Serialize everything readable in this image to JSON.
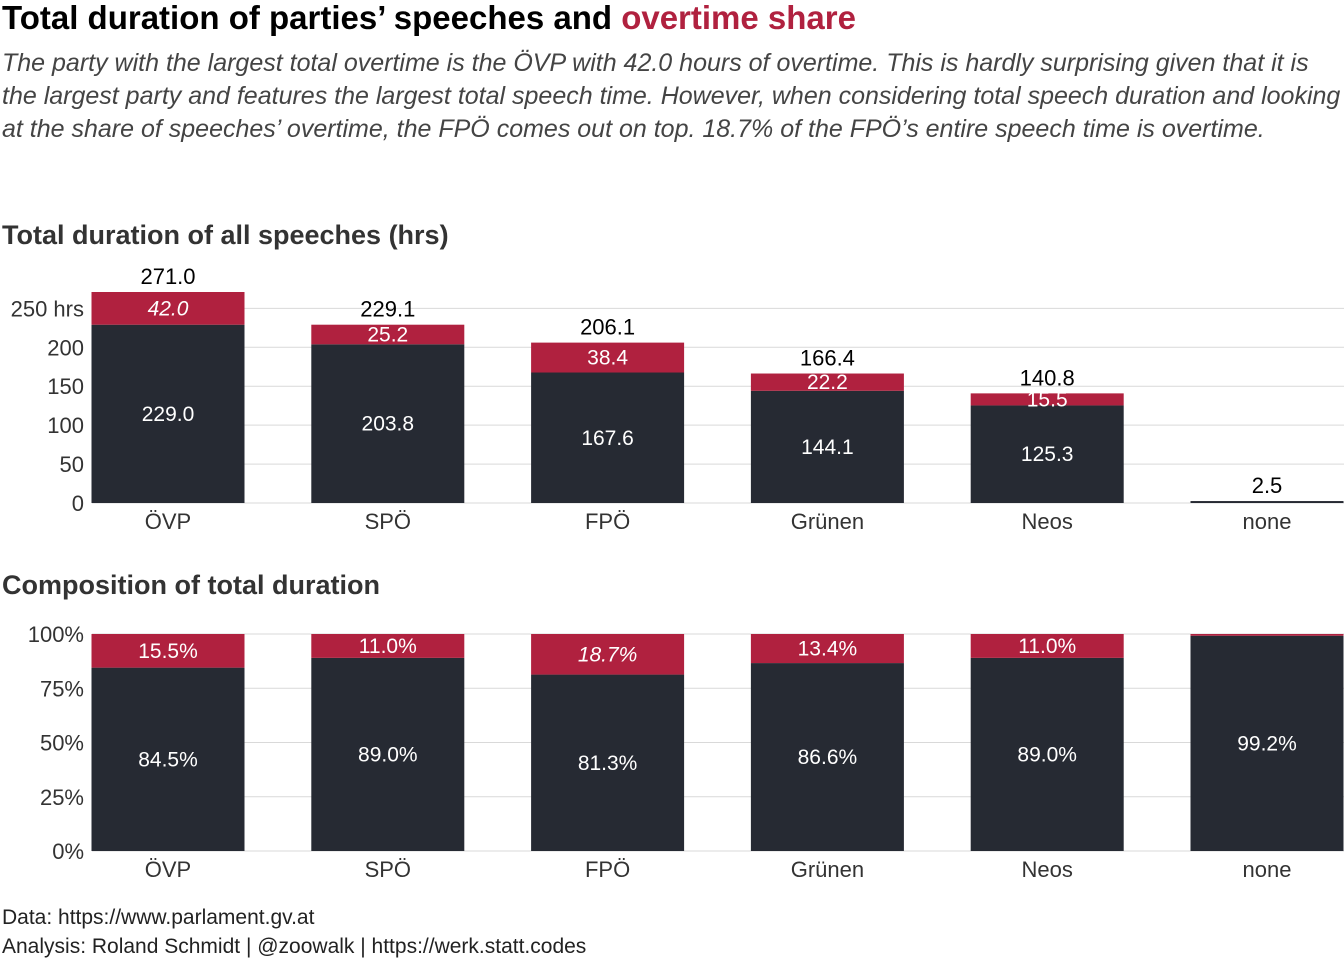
{
  "title": {
    "part1": "Total duration of parties’ speeches and ",
    "part2": "overtime share"
  },
  "subtitle": "The party with the largest total overtime is the ÖVP with 42.0 hours of overtime. This is hardly surprising given that it is the largest party and features the largest total speech time. However, when considering total speech duration and looking at the share of speeches’ overtime, the FPÖ comes out on top. 18.7% of the FPÖ’s entire speech time is overtime.",
  "captions": {
    "data": "Data: https://www.parlament.gv.at",
    "analysis": "Analysis: Roland Schmidt | @zoowalk | https://werk.statt.codes"
  },
  "colors": {
    "regular": "#262a33",
    "overtime": "#b0213f",
    "grid": "#d9d9d9"
  },
  "chart_data": [
    {
      "type": "bar",
      "stacked": true,
      "title": "Total duration of all speeches (hrs)",
      "categories": [
        "ÖVP",
        "SPÖ",
        "FPÖ",
        "Grünen",
        "Neos",
        "none"
      ],
      "series": [
        {
          "name": "regular",
          "values": [
            229.0,
            203.8,
            167.6,
            144.1,
            125.3,
            2.5
          ],
          "labels": [
            "229.0",
            "203.8",
            "167.6",
            "144.1",
            "125.3",
            ""
          ]
        },
        {
          "name": "overtime",
          "values": [
            42.0,
            25.2,
            38.4,
            22.2,
            15.5,
            0.0
          ],
          "labels": [
            "42.0",
            "25.2",
            "38.4",
            "22.2",
            "15.5",
            ""
          ]
        }
      ],
      "totals": [
        271.0,
        229.1,
        206.1,
        166.4,
        140.8,
        2.5
      ],
      "total_labels": [
        "271.0",
        "229.1",
        "206.1",
        "166.4",
        "140.8",
        "2.5"
      ],
      "yticks": [
        0,
        50,
        100,
        150,
        200,
        250
      ],
      "ytick_labels": [
        "0",
        "50",
        "100",
        "150",
        "200",
        "250 hrs"
      ],
      "ylim": [
        0,
        271
      ],
      "grid": true,
      "italic_category": "ÖVP"
    },
    {
      "type": "bar",
      "stacked": true,
      "title": "Composition of total duration",
      "categories": [
        "ÖVP",
        "SPÖ",
        "FPÖ",
        "Grünen",
        "Neos",
        "none"
      ],
      "series": [
        {
          "name": "regular",
          "values": [
            84.5,
            89.0,
            81.3,
            86.6,
            89.0,
            99.2
          ],
          "labels": [
            "84.5%",
            "89.0%",
            "81.3%",
            "86.6%",
            "89.0%",
            "99.2%"
          ]
        },
        {
          "name": "overtime",
          "values": [
            15.5,
            11.0,
            18.7,
            13.4,
            11.0,
            0.8
          ],
          "labels": [
            "15.5%",
            "11.0%",
            "18.7%",
            "13.4%",
            "11.0%",
            ""
          ]
        }
      ],
      "yticks": [
        0,
        25,
        50,
        75,
        100
      ],
      "ytick_labels": [
        "0%",
        "25%",
        "50%",
        "75%",
        "100%"
      ],
      "ylim": [
        0,
        100
      ],
      "grid": true,
      "italic_category": "FPÖ"
    }
  ]
}
